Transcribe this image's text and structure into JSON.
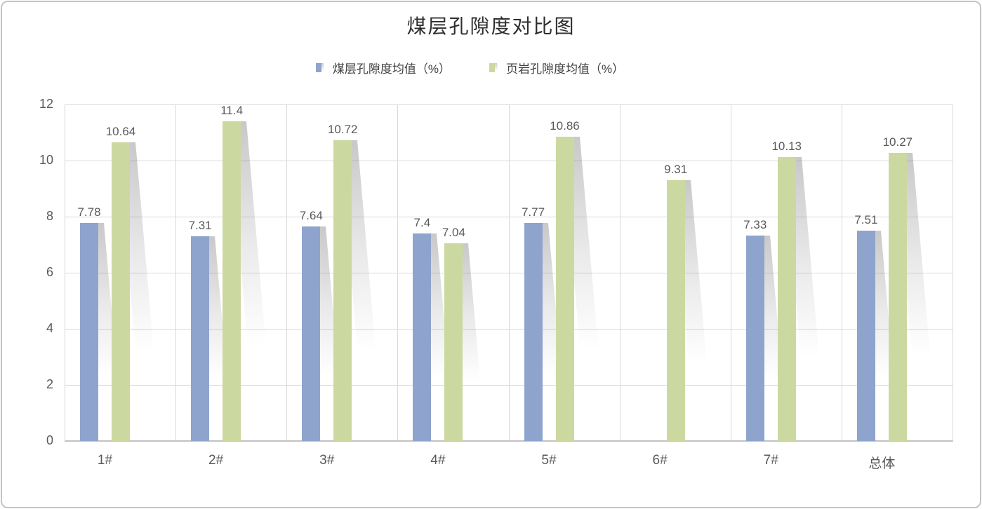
{
  "title": "煤层孔隙度对比图",
  "chart_data": {
    "type": "bar",
    "title": "煤层孔隙度对比图",
    "categories": [
      "1#",
      "2#",
      "3#",
      "4#",
      "5#",
      "6#",
      "7#",
      "总体"
    ],
    "series": [
      {
        "name": "煤层孔隙度均值（%）",
        "key": "coal",
        "color": "#8EA4CD",
        "values": [
          7.78,
          7.31,
          7.64,
          7.4,
          7.77,
          null,
          7.33,
          7.51
        ],
        "labels": [
          "7.78",
          "7.31",
          "7.64",
          "7.4",
          "7.77",
          "",
          "7.33",
          "7.51"
        ]
      },
      {
        "name": "页岩孔隙度均值（%）",
        "key": "shale",
        "color": "#CBD9A0",
        "values": [
          10.64,
          11.4,
          10.72,
          7.04,
          10.86,
          9.31,
          10.13,
          10.27
        ],
        "labels": [
          "10.64",
          "11.4",
          "10.72",
          "7.04",
          "10.86",
          "9.31",
          "10.13",
          "10.27"
        ]
      }
    ],
    "ylim": [
      0,
      12
    ],
    "yticks": [
      0,
      2,
      4,
      6,
      8,
      10,
      12
    ],
    "xlabel": "",
    "ylabel": "",
    "grid": true,
    "legend_position": "top"
  },
  "colors": {
    "grid": "#D9D9D9",
    "axis": "#C2C2C2",
    "tick_text": "#595959",
    "data_label_text": "#595959",
    "title_text": "#2E2E2E",
    "legend_text": "#404040",
    "frame_border": "#C4C4C4",
    "shadow": "#7D7D7D",
    "background": "#FFFFFF"
  }
}
